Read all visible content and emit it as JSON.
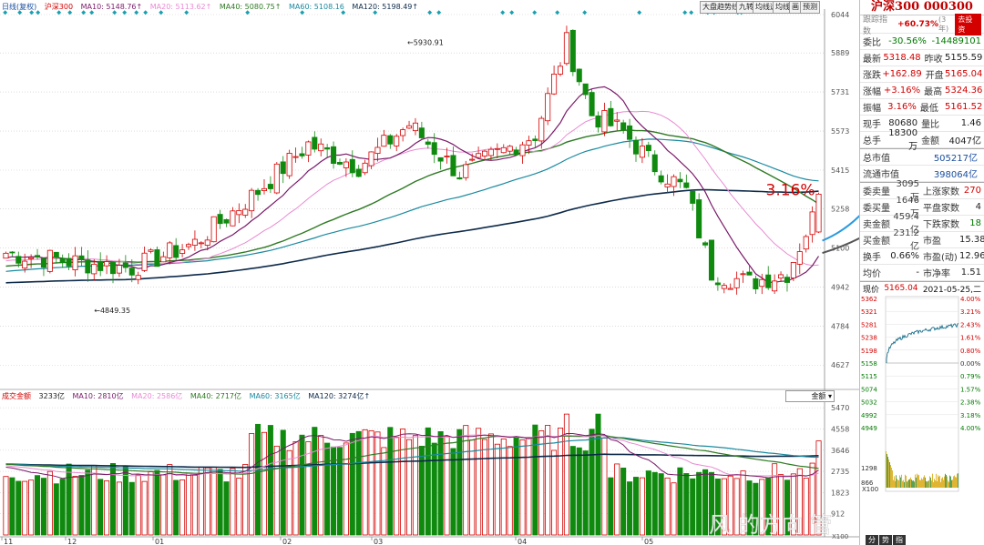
{
  "legend_top": {
    "mode": "日线(复权)",
    "name": "沪深300",
    "ma10": "MA10: 5148.76↑",
    "ma20": "MA20: 5113.62↑",
    "ma40": "MA40: 5080.75↑",
    "ma60": "MA60: 5108.16",
    "ma120": "MA120: 5198.49↑"
  },
  "toolbar": {
    "btn1": "大盘趋势线",
    "btn2": "九转",
    "btn3": "均线选",
    "btn4": "均线",
    "btn5": "画",
    "btn6": "预测"
  },
  "price_axis": [
    "6044",
    "5889",
    "5731",
    "5573",
    "5415",
    "5258",
    "5100",
    "4942",
    "4784",
    "4627"
  ],
  "volume_axis": [
    "5470",
    "4558",
    "3646",
    "2735",
    "1823",
    "912",
    "X100"
  ],
  "annotations": {
    "high": "5930.91",
    "low": "4849.35",
    "pct": "3.16%",
    "ma_label_20": "20",
    "ma_label_40": "40"
  },
  "volume_legend": {
    "name": "成交金额",
    "v": "3233亿",
    "ma10": "MA10: 2810亿",
    "ma20": "MA20: 2586亿",
    "ma40": "MA40: 2717亿",
    "ma60": "MA60: 3165亿",
    "ma120": "MA120: 3274亿↑"
  },
  "volume_select": "金额",
  "date_axis": [
    "11",
    "12",
    "01",
    "02",
    "03",
    "04",
    "05"
  ],
  "colors": {
    "up": "#d40000",
    "down": "#0f8a0f",
    "ma10": "#7a1a6a",
    "ma20": "#e98ad3",
    "ma40": "#2f7a24",
    "ma60": "#1a8aa0",
    "ma120": "#0d2a4a",
    "ma20_ext": "#2a9ae0",
    "ma40_ext": "#555555"
  },
  "side": {
    "title": "沪深300 000300",
    "trend_label": "跟踪指数",
    "trend_val": "+60.73%",
    "trend_sub": "(3年)",
    "trend_btn": "去投资",
    "rows": [
      {
        "l": "委比",
        "v": "-30.56%",
        "l2": "",
        "v2": "-14489101"
      },
      {
        "l": "最新",
        "v": "5318.48",
        "l2": "昨收",
        "v2": "5155.59"
      },
      {
        "l": "涨跌",
        "v": "+162.89",
        "l2": "开盘",
        "v2": "5165.04"
      },
      {
        "l": "涨幅",
        "v": "+3.16%",
        "l2": "最高",
        "v2": "5324.36"
      },
      {
        "l": "振幅",
        "v": "3.16%",
        "l2": "最低",
        "v2": "5161.52"
      },
      {
        "l": "现手",
        "v": "80680",
        "l2": "量比",
        "v2": "1.46"
      },
      {
        "l": "总手",
        "v": "18300万",
        "l2": "金额",
        "v2": "4047亿"
      }
    ],
    "rows2": [
      {
        "l": "总市值",
        "v": "505217亿"
      },
      {
        "l": "流通市值",
        "v": "398064亿"
      }
    ],
    "rows3": [
      {
        "l": "委卖量",
        "v": "3095万",
        "l2": "上涨家数",
        "v2": "270"
      },
      {
        "l": "委买量",
        "v": "1646万",
        "l2": "平盘家数",
        "v2": "4"
      },
      {
        "l": "卖金额",
        "v": "459.4亿",
        "l2": "下跌家数",
        "v2": "18"
      },
      {
        "l": "买金额",
        "v": "231.2亿",
        "l2": "市盈",
        "v2": "15.38"
      },
      {
        "l": "换手",
        "v": "0.66%",
        "l2": "市盈(动)",
        "v2": "12.96"
      },
      {
        "l": "均价",
        "v": "-",
        "l2": "市净率",
        "v2": "1.51"
      }
    ],
    "intraday": {
      "label": "现价",
      "price": "5165.04",
      "date": "2021-05-25,二",
      "left_axis": [
        "5362",
        "5321",
        "5281",
        "5238",
        "5198",
        "5158",
        "5115",
        "5074",
        "5032",
        "4992",
        "4949",
        "1298",
        "866",
        "433"
      ],
      "right_axis": [
        "4.00%",
        "3.21%",
        "2.43%",
        "1.61%",
        "0.80%",
        "0.00%",
        "0.79%",
        "1.57%",
        "2.38%",
        "3.18%",
        "4.00%"
      ],
      "vol_label": "X100"
    },
    "tabs": [
      "分",
      "势",
      "指"
    ]
  },
  "watermark": "风        的方向  管"
}
